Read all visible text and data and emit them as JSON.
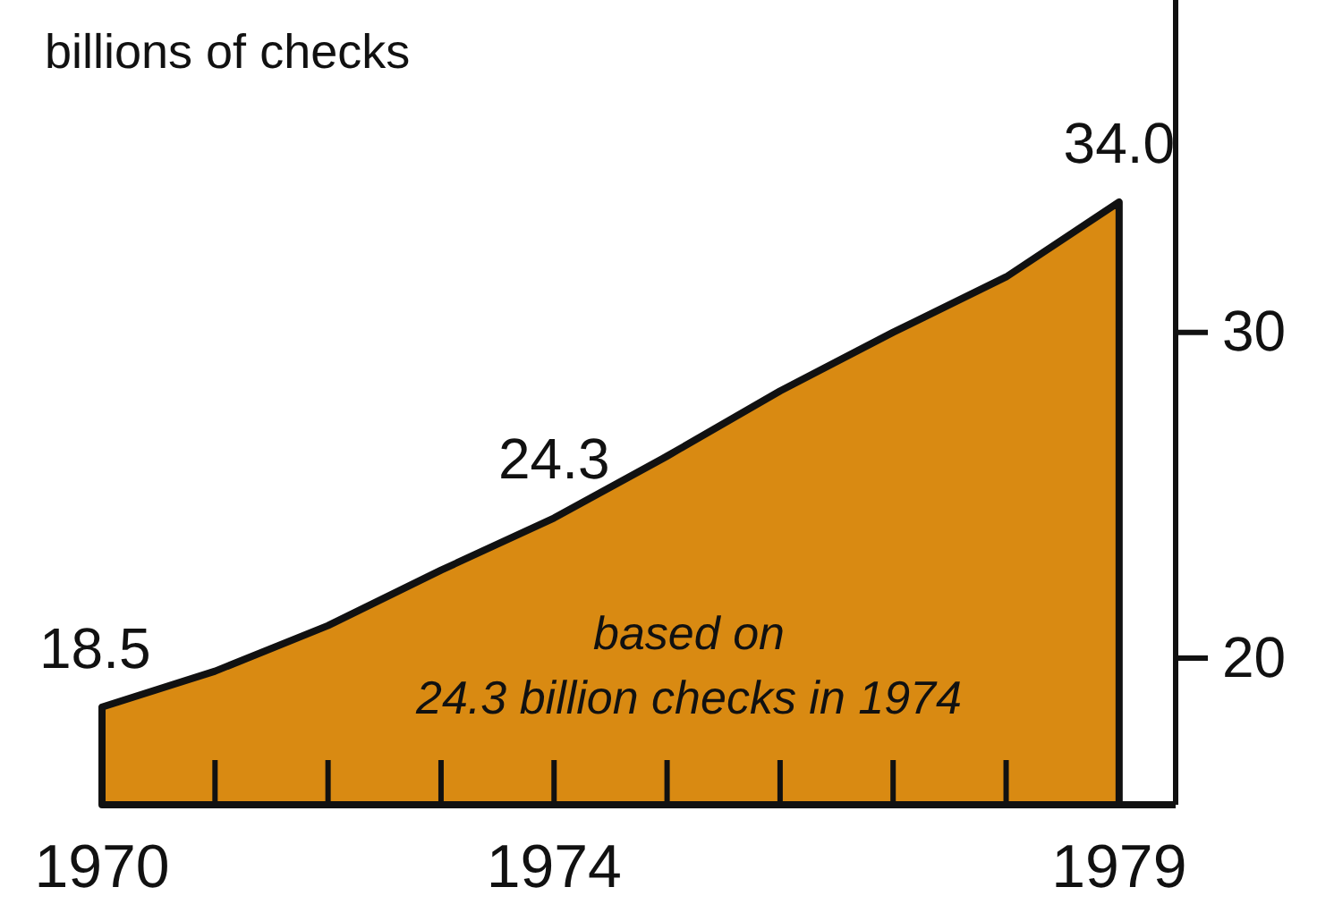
{
  "chart_data": {
    "type": "area",
    "ylabel": "billions of checks",
    "x": [
      1970,
      1971,
      1972,
      1973,
      1974,
      1975,
      1976,
      1977,
      1978,
      1979
    ],
    "values": [
      18.5,
      19.6,
      21.0,
      22.7,
      24.3,
      26.2,
      28.2,
      30.0,
      31.7,
      34.0
    ],
    "value_labels": [
      "18.5",
      null,
      null,
      null,
      "24.3",
      null,
      null,
      null,
      null,
      "34.0"
    ],
    "color": "#d98a12",
    "xlim": [
      1970,
      1979.5
    ],
    "xticks": [
      1970,
      1974,
      1979
    ],
    "ylim": [
      15.5,
      40.2
    ],
    "yticks": [
      20,
      30
    ],
    "annotations": [
      {
        "text": "based on\n24.3 billion checks in 1974"
      }
    ]
  }
}
